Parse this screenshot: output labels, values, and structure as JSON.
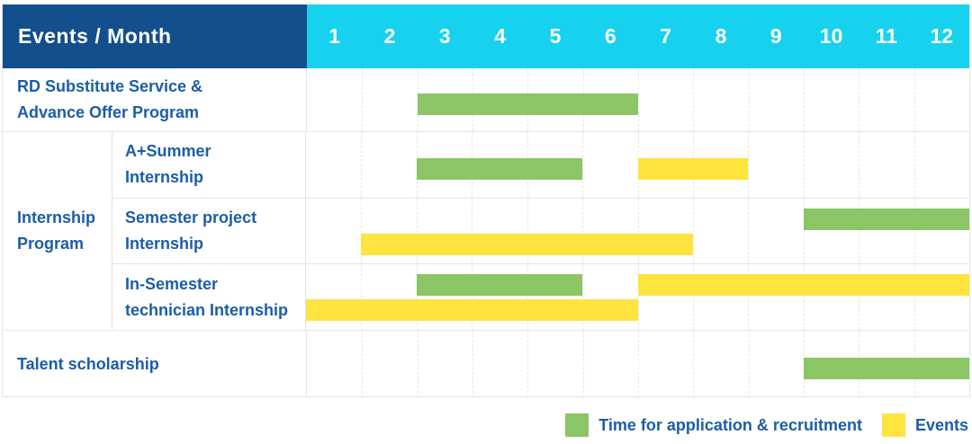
{
  "title": "Events / Month",
  "months": [
    "1",
    "2",
    "3",
    "4",
    "5",
    "6",
    "7",
    "8",
    "9",
    "10",
    "11",
    "12"
  ],
  "colors": {
    "header_bg": "#134F8C",
    "months_bg": "#16D2EE",
    "green": "#8BC566",
    "yellow": "#FFE33E",
    "label_text": "#1B5DA7",
    "grid_border": "#E4E4E4"
  },
  "group": {
    "line1": "Internship",
    "line2": "Program"
  },
  "rows": [
    {
      "label_line1": "RD Substitute Service &",
      "label_line2": "Advance Offer Program",
      "bars": [
        {
          "color": "green",
          "start": 3,
          "end": 6,
          "lane": "mid"
        }
      ]
    },
    {
      "label_line1": "A+Summer",
      "label_line2": "Internship",
      "bars": [
        {
          "color": "green",
          "start": 3,
          "end": 5,
          "lane": "mid"
        },
        {
          "color": "yellow",
          "start": 7,
          "end": 8,
          "lane": "mid"
        }
      ]
    },
    {
      "label_line1": "Semester project",
      "label_line2": "Internship",
      "bars": [
        {
          "color": "green",
          "start": 10,
          "end": 12,
          "lane": "upper"
        },
        {
          "color": "yellow",
          "start": 2,
          "end": 7,
          "lane": "lower"
        }
      ]
    },
    {
      "label_line1": "In-Semester",
      "label_line2": "technician Internship",
      "bars": [
        {
          "color": "green",
          "start": 3,
          "end": 5,
          "lane": "upper"
        },
        {
          "color": "yellow",
          "start": 7,
          "end": 12,
          "lane": "upper"
        },
        {
          "color": "yellow",
          "start": 1,
          "end": 6,
          "lane": "lower"
        }
      ]
    },
    {
      "label_line1": "Talent scholarship",
      "label_line2": "",
      "bars": [
        {
          "color": "green",
          "start": 10,
          "end": 12,
          "lane": "mid"
        }
      ]
    }
  ],
  "legend": [
    {
      "color": "green",
      "label": "Time for application & recruitment"
    },
    {
      "color": "yellow",
      "label": "Events"
    }
  ],
  "chart_data": {
    "type": "table",
    "subtype": "gantt-timeline",
    "title": "Events / Month",
    "x": {
      "label": "Month",
      "ticks": [
        1,
        2,
        3,
        4,
        5,
        6,
        7,
        8,
        9,
        10,
        11,
        12
      ],
      "range": [
        1,
        12
      ]
    },
    "grid": "dashed-vertical-month-lines",
    "legend_position": "bottom-right",
    "legend": [
      {
        "name": "Time for application & recruitment",
        "color": "#8BC566"
      },
      {
        "name": "Events",
        "color": "#FFE33E"
      }
    ],
    "series": [
      {
        "event": "RD Substitute Service & Advance Offer Program",
        "group": null,
        "spans": [
          {
            "kind": "Time for application & recruitment",
            "from_month": 3,
            "to_month": 6
          }
        ]
      },
      {
        "event": "A+Summer Internship",
        "group": "Internship Program",
        "spans": [
          {
            "kind": "Time for application & recruitment",
            "from_month": 3,
            "to_month": 5
          },
          {
            "kind": "Events",
            "from_month": 7,
            "to_month": 8
          }
        ]
      },
      {
        "event": "Semester project Internship",
        "group": "Internship Program",
        "spans": [
          {
            "kind": "Time for application & recruitment",
            "from_month": 10,
            "to_month": 12
          },
          {
            "kind": "Events",
            "from_month": 2,
            "to_month": 7
          }
        ]
      },
      {
        "event": "In-Semester technician Internship",
        "group": "Internship Program",
        "spans": [
          {
            "kind": "Time for application & recruitment",
            "from_month": 3,
            "to_month": 5
          },
          {
            "kind": "Events",
            "from_month": 1,
            "to_month": 6
          },
          {
            "kind": "Events",
            "from_month": 7,
            "to_month": 12
          }
        ]
      },
      {
        "event": "Talent scholarship",
        "group": null,
        "spans": [
          {
            "kind": "Time for application & recruitment",
            "from_month": 10,
            "to_month": 12
          }
        ]
      }
    ]
  }
}
